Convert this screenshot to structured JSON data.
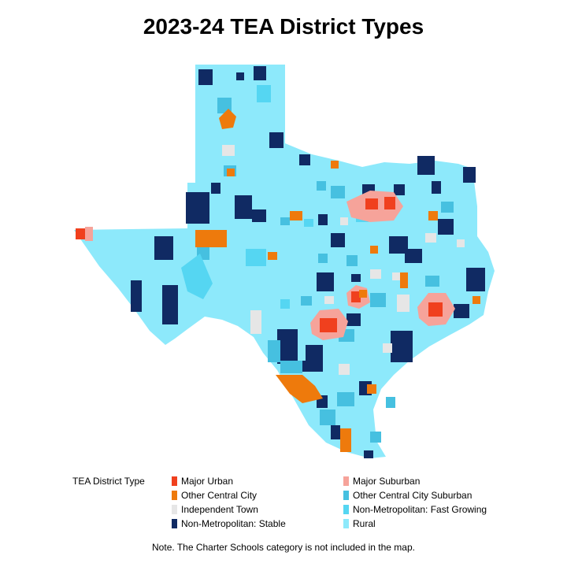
{
  "title": "2023-24 TEA District Types",
  "legend": {
    "title": "TEA District Type",
    "items": [
      {
        "label": "Major Urban",
        "color": "#f0401e"
      },
      {
        "label": "Major Suburban",
        "color": "#f6a39a"
      },
      {
        "label": "Other Central City",
        "color": "#ee7a0c"
      },
      {
        "label": "Other Central City Suburban",
        "color": "#46c0e0"
      },
      {
        "label": "Independent Town",
        "color": "#e6e6e6"
      },
      {
        "label": "Non-Metropolitan: Fast Growing",
        "color": "#55d6f2"
      },
      {
        "label": "Non-Metropolitan: Stable",
        "color": "#102a63"
      },
      {
        "label": "Rural",
        "color": "#8de9fb"
      }
    ]
  },
  "note": "Note. The Charter Schools category is not included in the map."
}
